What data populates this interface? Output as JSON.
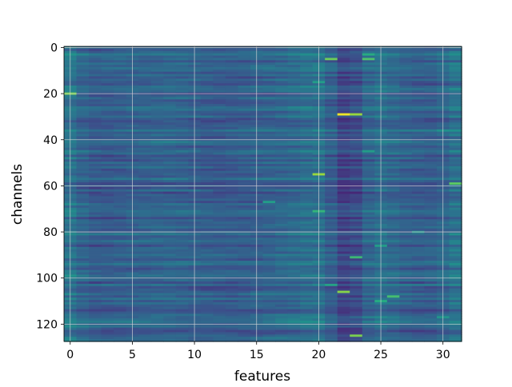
{
  "chart_data": {
    "type": "heatmap",
    "title": "",
    "xlabel": "features",
    "ylabel": "channels",
    "xlim": [
      -0.5,
      31.5
    ],
    "ylim": [
      127.5,
      -0.5
    ],
    "x_ticks": [
      0,
      5,
      10,
      15,
      20,
      25,
      30
    ],
    "y_ticks": [
      0,
      20,
      40,
      60,
      80,
      100,
      120
    ],
    "grid": true,
    "colormap": "viridis",
    "value_range": [
      0,
      1
    ],
    "shape": {
      "rows": 128,
      "cols": 32
    },
    "column_mean_profile": [
      0.42,
      0.3,
      0.29,
      0.29,
      0.3,
      0.31,
      0.31,
      0.32,
      0.33,
      0.32,
      0.31,
      0.3,
      0.29,
      0.29,
      0.3,
      0.31,
      0.32,
      0.33,
      0.34,
      0.36,
      0.4,
      0.33,
      0.14,
      0.22,
      0.36,
      0.38,
      0.34,
      0.31,
      0.3,
      0.3,
      0.31,
      0.4
    ],
    "highlights": [
      {
        "row": 29,
        "col": 22,
        "value": 0.98
      },
      {
        "row": 29,
        "col": 23,
        "value": 0.85
      },
      {
        "row": 55,
        "col": 20,
        "value": 0.85
      },
      {
        "row": 106,
        "col": 22,
        "value": 0.82
      },
      {
        "row": 125,
        "col": 23,
        "value": 0.8
      },
      {
        "row": 5,
        "col": 21,
        "value": 0.78
      },
      {
        "row": 5,
        "col": 24,
        "value": 0.72
      },
      {
        "row": 3,
        "col": 24,
        "value": 0.62
      },
      {
        "row": 20,
        "col": 0,
        "value": 0.8
      },
      {
        "row": 59,
        "col": 31,
        "value": 0.75
      },
      {
        "row": 91,
        "col": 23,
        "value": 0.68
      },
      {
        "row": 108,
        "col": 26,
        "value": 0.7
      },
      {
        "row": 110,
        "col": 25,
        "value": 0.62
      },
      {
        "row": 71,
        "col": 20,
        "value": 0.66
      },
      {
        "row": 67,
        "col": 16,
        "value": 0.55
      },
      {
        "row": 103,
        "col": 21,
        "value": 0.58
      },
      {
        "row": 15,
        "col": 20,
        "value": 0.55
      },
      {
        "row": 45,
        "col": 24,
        "value": 0.55
      },
      {
        "row": 86,
        "col": 25,
        "value": 0.55
      },
      {
        "row": 117,
        "col": 30,
        "value": 0.52
      },
      {
        "row": 36,
        "col": 30,
        "value": 0.5
      },
      {
        "row": 80,
        "col": 28,
        "value": 0.5
      }
    ]
  }
}
